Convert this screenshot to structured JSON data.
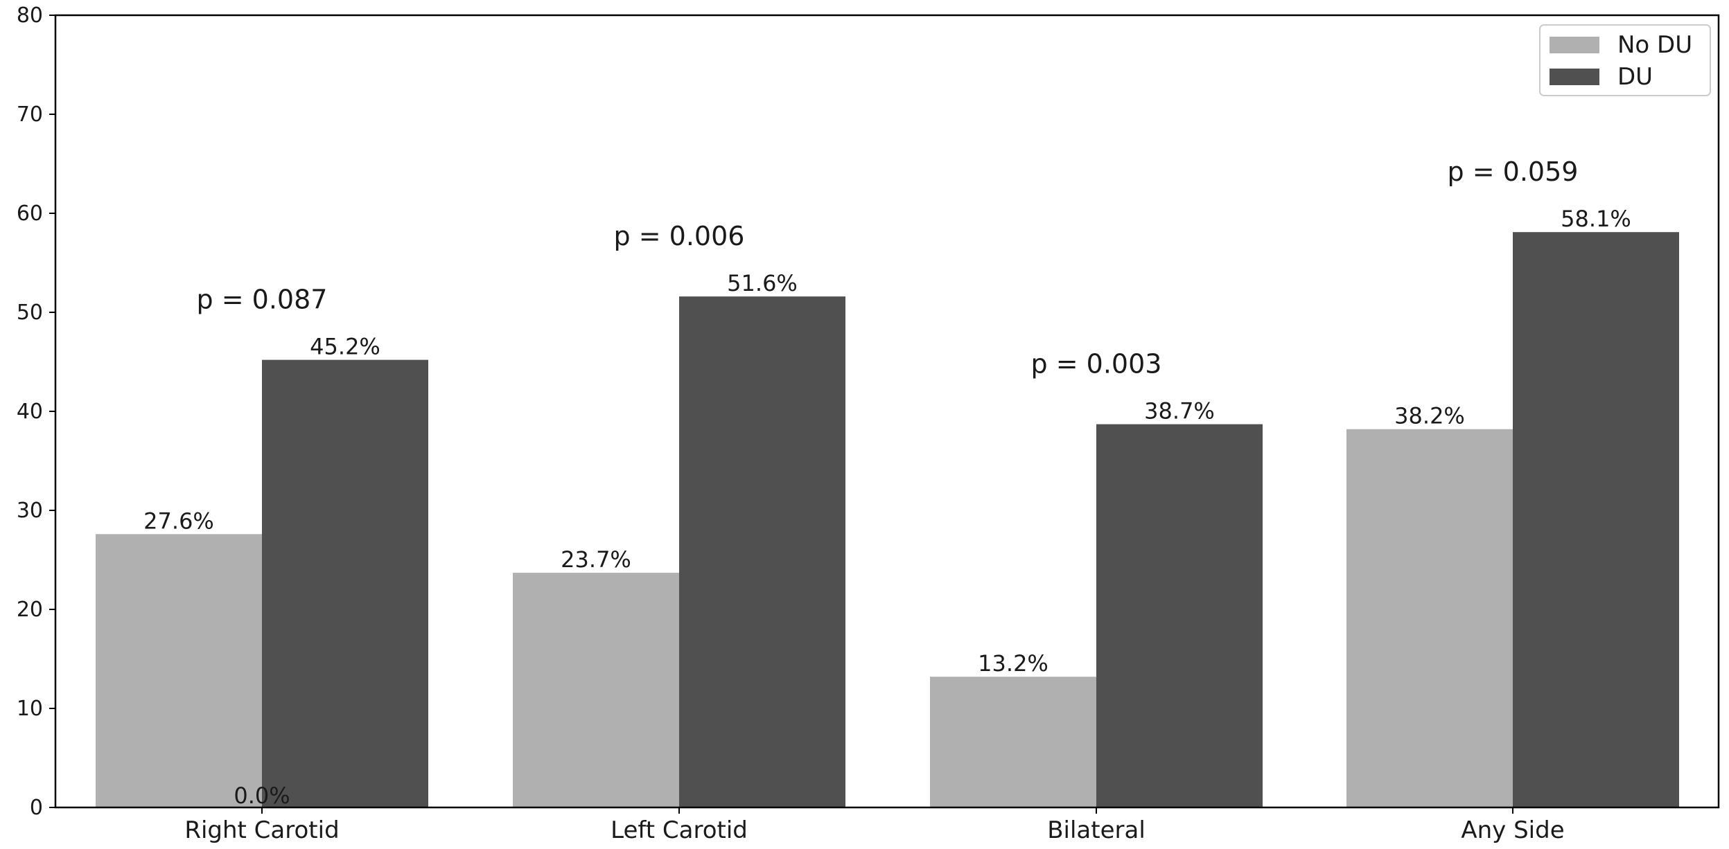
{
  "chart_data": {
    "type": "bar",
    "title": "",
    "xlabel": "",
    "ylabel": "",
    "ylim": [
      0,
      80
    ],
    "yticks": [
      0,
      10,
      20,
      30,
      40,
      50,
      60,
      70,
      80
    ],
    "categories": [
      "Right Carotid",
      "Left Carotid",
      "Bilateral",
      "Any Side"
    ],
    "series": [
      {
        "name": "No DU",
        "color": "#b0b0b0",
        "values": [
          27.6,
          23.7,
          13.2,
          38.2
        ],
        "labels": [
          "27.6%",
          "23.7%",
          "13.2%",
          "38.2%"
        ]
      },
      {
        "name": "DU",
        "color": "#505050",
        "values": [
          45.2,
          51.6,
          38.7,
          58.1
        ],
        "labels": [
          "45.2%",
          "51.6%",
          "38.7%",
          "58.1%"
        ]
      }
    ],
    "p_values": [
      "p = 0.087",
      "p = 0.006",
      "p = 0.003",
      "p = 0.059"
    ],
    "extra_annotations": [
      "0.0%"
    ],
    "legend_position": "top-right",
    "grid": false
  }
}
